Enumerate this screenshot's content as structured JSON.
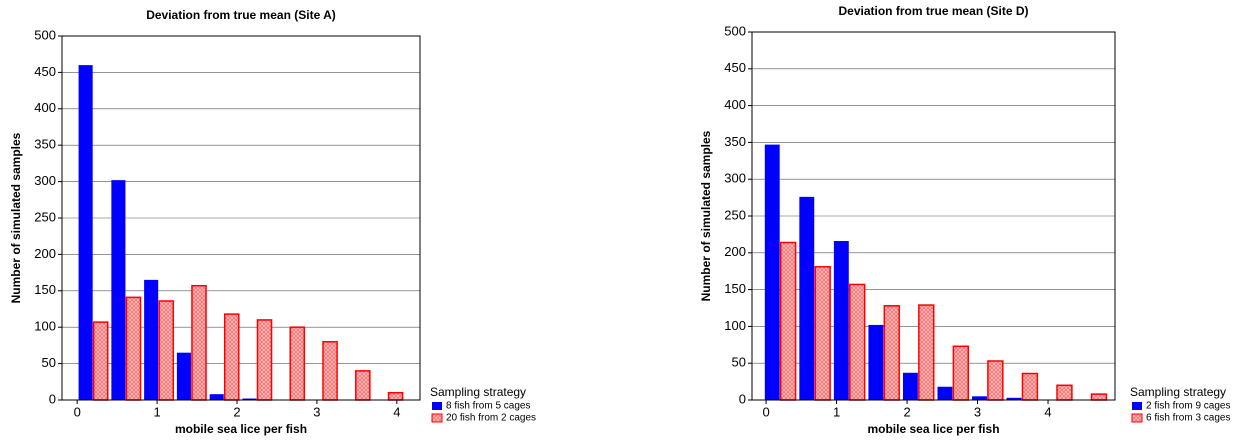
{
  "chart_data": [
    {
      "type": "bar",
      "title": "Deviation from true mean (Site A)",
      "x_label": "mobile sea lice per fish",
      "y_label": "Number of simulated samples",
      "x": [
        0.2,
        0.61,
        1.02,
        1.43,
        1.84,
        2.25,
        2.66,
        3.07,
        3.48,
        3.89
      ],
      "legend_title": "Sampling strategy",
      "series": [
        {
          "name": "8 fish from 5 cages",
          "color": "#0000ff",
          "values": [
            460,
            302,
            165,
            65,
            8,
            2,
            0,
            0,
            0,
            0
          ]
        },
        {
          "name": "20 fish from 2 cages",
          "color": "#ff0000",
          "values": [
            107,
            141,
            136,
            157,
            118,
            110,
            100,
            80,
            40,
            10
          ]
        }
      ],
      "xlim": [
        -0.19,
        4.29
      ],
      "xticks": [
        0,
        1,
        2,
        3,
        4
      ],
      "ylim": [
        0,
        500
      ],
      "yticks": [
        0,
        50,
        100,
        150,
        200,
        250,
        300,
        350,
        400,
        450,
        500
      ],
      "grid": true
    },
    {
      "type": "bar",
      "title": "Deviation from true mean (Site D)",
      "x_label": "mobile sea lice per fish",
      "y_label": "Number of simulated samples",
      "x": [
        0.2,
        0.69,
        1.18,
        1.67,
        2.16,
        2.65,
        3.14,
        3.63,
        4.12,
        4.61
      ],
      "legend_title": "Sampling strategy",
      "series": [
        {
          "name": "2 fish from 9 cages",
          "color": "#0000ff",
          "values": [
            347,
            276,
            216,
            102,
            37,
            18,
            5,
            3,
            0,
            0
          ]
        },
        {
          "name": "6 fish from 3 cages",
          "color": "#ff0000",
          "values": [
            214,
            181,
            157,
            128,
            129,
            73,
            53,
            36,
            20,
            8
          ]
        }
      ],
      "xlim": [
        -0.2,
        4.95
      ],
      "xticks": [
        0,
        1,
        2,
        3,
        4
      ],
      "ylim": [
        0,
        500
      ],
      "yticks": [
        0,
        50,
        100,
        150,
        200,
        250,
        300,
        350,
        400,
        450,
        500
      ],
      "grid": true
    }
  ]
}
